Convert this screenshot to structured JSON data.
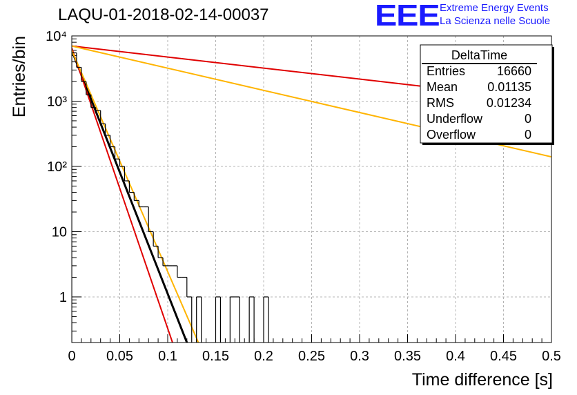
{
  "title": "LAQU-01-2018-02-14-00037",
  "logo": {
    "mark": "EEE",
    "line1": "Extreme Energy Events",
    "line2": "La Scienza nelle Scuole",
    "color": "#1a1aff"
  },
  "stats": {
    "title": "DeltaTime",
    "rows": [
      {
        "name": "Entries",
        "value": "16660"
      },
      {
        "name": "Mean",
        "value": "0.01135"
      },
      {
        "name": "RMS",
        "value": "0.01234"
      },
      {
        "name": "Underflow",
        "value": "0"
      },
      {
        "name": "Overflow",
        "value": "0"
      }
    ]
  },
  "chart_data": {
    "type": "histogram",
    "title": "LAQU-01-2018-02-14-00037",
    "xlabel": "Time difference [s]",
    "ylabel": "Entries/bin",
    "xlim": [
      0,
      0.5
    ],
    "ylim": [
      0.2,
      10000
    ],
    "yscale": "log",
    "grid": true,
    "x_ticks": [
      0,
      0.05,
      0.1,
      0.15,
      0.2,
      0.25,
      0.3,
      0.35,
      0.4,
      0.45,
      0.5
    ],
    "x_tick_labels": [
      "0",
      "0.05",
      "0.1",
      "0.15",
      "0.2",
      "0.25",
      "0.3",
      "0.35",
      "0.4",
      "0.45",
      "0.5"
    ],
    "y_ticks": [
      1,
      10,
      100,
      1000,
      10000
    ],
    "y_tick_labels": [
      "1",
      "10",
      "10²",
      "10³",
      "10⁴"
    ],
    "bin_width": 0.005,
    "histogram": {
      "name": "DeltaTime",
      "color": "#000000",
      "bins": [
        {
          "x": 0.0,
          "y": 5500
        },
        {
          "x": 0.005,
          "y": 3300
        },
        {
          "x": 0.01,
          "y": 2000
        },
        {
          "x": 0.015,
          "y": 1250
        },
        {
          "x": 0.02,
          "y": 800
        },
        {
          "x": 0.025,
          "y": 720
        },
        {
          "x": 0.03,
          "y": 450
        },
        {
          "x": 0.035,
          "y": 300
        },
        {
          "x": 0.04,
          "y": 200
        },
        {
          "x": 0.045,
          "y": 130
        },
        {
          "x": 0.05,
          "y": 100
        },
        {
          "x": 0.055,
          "y": 60
        },
        {
          "x": 0.06,
          "y": 40
        },
        {
          "x": 0.065,
          "y": 30
        },
        {
          "x": 0.07,
          "y": 24
        },
        {
          "x": 0.075,
          "y": 24
        },
        {
          "x": 0.08,
          "y": 10
        },
        {
          "x": 0.085,
          "y": 6
        },
        {
          "x": 0.09,
          "y": 4
        },
        {
          "x": 0.095,
          "y": 3
        },
        {
          "x": 0.1,
          "y": 3
        },
        {
          "x": 0.105,
          "y": 3
        },
        {
          "x": 0.11,
          "y": 2
        },
        {
          "x": 0.115,
          "y": 2
        },
        {
          "x": 0.12,
          "y": 1
        },
        {
          "x": 0.13,
          "y": 1
        },
        {
          "x": 0.15,
          "y": 1
        },
        {
          "x": 0.165,
          "y": 1
        },
        {
          "x": 0.17,
          "y": 1
        },
        {
          "x": 0.185,
          "y": 1
        },
        {
          "x": 0.2,
          "y": 1
        }
      ]
    },
    "fits": [
      {
        "name": "fit-black",
        "color": "#000000",
        "width": 3,
        "x": [
          0,
          0.12
        ],
        "y": [
          6000,
          0.2
        ]
      },
      {
        "name": "fit-red-steep",
        "color": "#e00000",
        "width": 2,
        "x": [
          0,
          0.105
        ],
        "y": [
          6500,
          0.2
        ]
      },
      {
        "name": "fit-orange-steep",
        "color": "#ffb400",
        "width": 2,
        "x": [
          0,
          0.132
        ],
        "y": [
          6000,
          0.2
        ]
      },
      {
        "name": "fit-red-slow",
        "color": "#e00000",
        "width": 2,
        "x": [
          0,
          0.5
        ],
        "y": [
          7000,
          1000
        ]
      },
      {
        "name": "fit-orange-slow",
        "color": "#ffb400",
        "width": 2,
        "x": [
          0,
          0.5
        ],
        "y": [
          7000,
          140
        ]
      }
    ]
  }
}
